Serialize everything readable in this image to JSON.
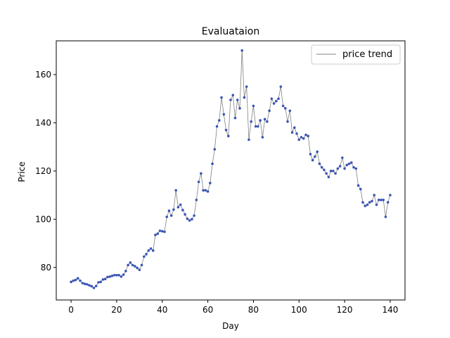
{
  "chart_data": {
    "type": "line",
    "title": "Evaluataion",
    "xlabel": "Day",
    "ylabel": "Price",
    "xlim": [
      -6.5,
      146.5
    ],
    "ylim": [
      66.5,
      174
    ],
    "xticks": [
      0,
      20,
      40,
      60,
      80,
      100,
      120,
      140
    ],
    "yticks": [
      80,
      100,
      120,
      140,
      160
    ],
    "grid": false,
    "legend_position": "top-right",
    "line_color": "#808080",
    "marker_color": "#3a55b4",
    "series": [
      {
        "name": "price trend",
        "x": [
          0,
          1,
          2,
          3,
          4,
          5,
          6,
          7,
          8,
          9,
          10,
          11,
          12,
          13,
          14,
          15,
          16,
          17,
          18,
          19,
          20,
          21,
          22,
          23,
          24,
          25,
          26,
          27,
          28,
          29,
          30,
          31,
          32,
          33,
          34,
          35,
          36,
          37,
          38,
          39,
          40,
          41,
          42,
          43,
          44,
          45,
          46,
          47,
          48,
          49,
          50,
          51,
          52,
          53,
          54,
          55,
          56,
          57,
          58,
          59,
          60,
          61,
          62,
          63,
          64,
          65,
          66,
          67,
          68,
          69,
          70,
          71,
          72,
          73,
          74,
          75,
          76,
          77,
          78,
          79,
          80,
          81,
          82,
          83,
          84,
          85,
          86,
          87,
          88,
          89,
          90,
          91,
          92,
          93,
          94,
          95,
          96,
          97,
          98,
          99,
          100,
          101,
          102,
          103,
          104,
          105,
          106,
          107,
          108,
          109,
          110,
          111,
          112,
          113,
          114,
          115,
          116,
          117,
          118,
          119,
          120,
          121,
          122,
          123,
          124,
          125,
          126,
          127,
          128,
          129,
          130,
          131,
          132,
          133,
          134,
          135,
          136,
          137,
          138,
          139,
          140
        ],
        "values": [
          74,
          74.5,
          74.8,
          75.5,
          74.5,
          73.5,
          73.2,
          73,
          72.6,
          72.2,
          71.5,
          72.3,
          73.8,
          74,
          75,
          75.2,
          76,
          76.2,
          76.5,
          76.8,
          76.8,
          76.8,
          76.2,
          77,
          78.5,
          81,
          82,
          81,
          80.5,
          79.8,
          79,
          81,
          84.5,
          85.5,
          87,
          87.8,
          87,
          93.5,
          94,
          95.2,
          95,
          94.8,
          101,
          103.5,
          101.5,
          104,
          112,
          105,
          106,
          103.8,
          102,
          100.2,
          99.5,
          100,
          101.5,
          108,
          115.5,
          119,
          112,
          112,
          111.5,
          115,
          123,
          129,
          138.5,
          141,
          150.5,
          143.5,
          137,
          134.5,
          149.5,
          151.5,
          142,
          149.5,
          146,
          170,
          150.5,
          155,
          133,
          140.5,
          147,
          138.5,
          138.5,
          141,
          134,
          141.5,
          140.5,
          145,
          150,
          148,
          149,
          150,
          155,
          147,
          146,
          140.5,
          145,
          136,
          138,
          135.5,
          133,
          134,
          133.5,
          135,
          134.5,
          127,
          124.5,
          126,
          128,
          123,
          121.5,
          120.5,
          119,
          117.5,
          120,
          120,
          119,
          121,
          122,
          125.5,
          121,
          122.5,
          123,
          123.5,
          121.5,
          121,
          114,
          112.5,
          107,
          105.5,
          106,
          107,
          107.5,
          110,
          106,
          108,
          108,
          108,
          101,
          107,
          110
        ]
      }
    ]
  }
}
